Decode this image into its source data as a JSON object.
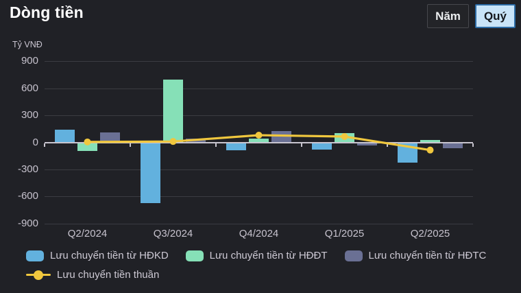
{
  "header": {
    "title": "Dòng tiền",
    "period_buttons": [
      {
        "label": "Năm",
        "active": false
      },
      {
        "label": "Quý",
        "active": true
      }
    ]
  },
  "colors": {
    "background": "#202126",
    "title_text": "#ffffff",
    "axis_line": "#c8c5cf",
    "gridline": "#3b3c42",
    "tick_text": "#c6c2cd",
    "active_button_bg": "#c9e4f8",
    "active_button_border": "#2d6ca6",
    "series_operating": "#62b1de",
    "series_investing": "#86e0b7",
    "series_financing": "#6a7094",
    "series_net": "#f0c73e"
  },
  "chart_data": {
    "type": "bar",
    "title": "Dòng tiền",
    "unit_label": "Tỷ VNĐ",
    "categories": [
      "Q2/2024",
      "Q3/2024",
      "Q4/2024",
      "Q1/2025",
      "Q2/2025"
    ],
    "series": [
      {
        "name": "Lưu chuyển tiền từ HĐKD",
        "kind": "bar",
        "color": "#62b1de",
        "values": [
          140,
          -670,
          -80,
          -75,
          -215
        ]
      },
      {
        "name": "Lưu chuyển tiền từ HĐĐT",
        "kind": "bar",
        "color": "#86e0b7",
        "values": [
          -90,
          700,
          40,
          100,
          25
        ]
      },
      {
        "name": "Lưu chuyển tiền từ HĐTC",
        "kind": "bar",
        "color": "#6a7094",
        "values": [
          110,
          40,
          125,
          -25,
          -60
        ]
      },
      {
        "name": "Lưu chuyển tiền thuần",
        "kind": "line",
        "color": "#f0c73e",
        "values": [
          5,
          10,
          80,
          65,
          -85
        ]
      }
    ],
    "ylim": [
      -900,
      900
    ],
    "yticks": [
      900,
      600,
      300,
      0,
      -300,
      -600,
      -900
    ],
    "grid": true,
    "legend_position": "bottom"
  }
}
